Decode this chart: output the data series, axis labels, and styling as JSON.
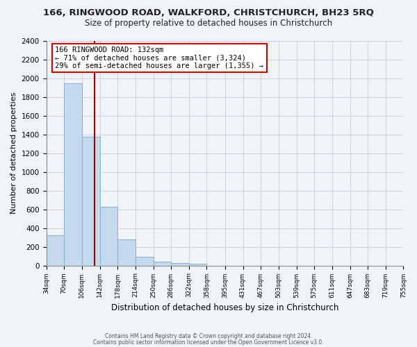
{
  "title": "166, RINGWOOD ROAD, WALKFORD, CHRISTCHURCH, BH23 5RQ",
  "subtitle": "Size of property relative to detached houses in Christchurch",
  "xlabel": "Distribution of detached houses by size in Christchurch",
  "ylabel": "Number of detached properties",
  "bar_values": [
    320,
    1950,
    1375,
    630,
    280,
    95,
    45,
    25,
    20,
    0,
    0,
    0,
    0,
    0,
    0,
    0,
    0,
    0,
    0,
    0
  ],
  "bin_edges": [
    34,
    70,
    106,
    142,
    178,
    214,
    250,
    286,
    322,
    358,
    395,
    431,
    467,
    503,
    539,
    575,
    611,
    647,
    683,
    719,
    755
  ],
  "bar_color": "#c5d9ee",
  "bar_edge_color": "#8ab0cf",
  "vline_x": 132,
  "vline_color": "#aa0000",
  "ylim": [
    0,
    2400
  ],
  "yticks": [
    0,
    200,
    400,
    600,
    800,
    1000,
    1200,
    1400,
    1600,
    1800,
    2000,
    2200,
    2400
  ],
  "annotation_title": "166 RINGWOOD ROAD: 132sqm",
  "annotation_line1": "← 71% of detached houses are smaller (3,324)",
  "annotation_line2": "29% of semi-detached houses are larger (1,355) →",
  "footer1": "Contains HM Land Registry data © Crown copyright and database right 2024.",
  "footer2": "Contains public sector information licensed under the Open Government Licence v3.0.",
  "fig_bg_color": "#f0f4f8",
  "plot_bg_color": "#f0f4f8",
  "grid_color": "#c8d4e0"
}
